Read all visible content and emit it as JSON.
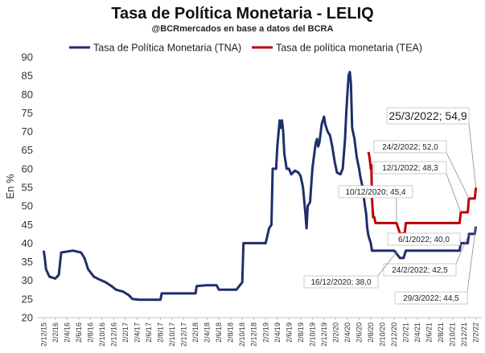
{
  "chart_data": {
    "type": "line",
    "title": "Tasa de Política Monetaria - LELIQ",
    "subtitle": "@BCRmercados en base a datos del BCRA",
    "ylabel": "En %",
    "ylim": [
      20,
      90
    ],
    "yticks": [
      "20",
      "25",
      "30",
      "35",
      "40",
      "45",
      "50",
      "55",
      "60",
      "65",
      "70",
      "75",
      "80",
      "85",
      "90"
    ],
    "xticks": [
      "2/12/15",
      "2/2/16",
      "2/4/16",
      "2/6/16",
      "2/8/16",
      "2/10/16",
      "2/12/16",
      "2/2/17",
      "2/4/17",
      "2/6/17",
      "2/8/17",
      "2/10/17",
      "2/12/17",
      "2/2/18",
      "2/4/18",
      "2/6/18",
      "2/8/18",
      "2/10/18",
      "2/12/18",
      "2/2/19",
      "2/4/19",
      "2/6/19",
      "2/8/19",
      "2/10/19",
      "2/12/19",
      "2/2/20",
      "2/4/20",
      "2/6/20",
      "2/8/20",
      "2/10/20",
      "2/12/20",
      "2/2/21",
      "2/4/21",
      "2/6/21",
      "2/8/21",
      "2/10/21",
      "2/12/21",
      "2/2/22"
    ],
    "legend_position": "top",
    "grid": false,
    "series": [
      {
        "name": "Tasa de Política Monetaria (TNA)",
        "color": "#1f2f6b",
        "points": [
          [
            0,
            38
          ],
          [
            0.1,
            36
          ],
          [
            0.2,
            33
          ],
          [
            0.5,
            31
          ],
          [
            1.0,
            30.5
          ],
          [
            1.3,
            31.5
          ],
          [
            1.5,
            37.5
          ],
          [
            2.5,
            38
          ],
          [
            3.2,
            37.5
          ],
          [
            3.5,
            36
          ],
          [
            3.8,
            33
          ],
          [
            4.3,
            31
          ],
          [
            4.8,
            30.2
          ],
          [
            5.3,
            29.5
          ],
          [
            5.8,
            28.5
          ],
          [
            6.2,
            27.5
          ],
          [
            6.8,
            27
          ],
          [
            7.3,
            26
          ],
          [
            7.6,
            25
          ],
          [
            8.2,
            24.8
          ],
          [
            10.0,
            24.8
          ],
          [
            10.1,
            26.5
          ],
          [
            13.0,
            26.5
          ],
          [
            13.1,
            28.5
          ],
          [
            14.0,
            28.7
          ],
          [
            14.8,
            28.7
          ],
          [
            15.0,
            27.5
          ],
          [
            16.5,
            27.5
          ],
          [
            17.0,
            29.5
          ],
          [
            17.1,
            40
          ],
          [
            18.5,
            40
          ],
          [
            19.0,
            40
          ],
          [
            19.3,
            44
          ],
          [
            19.5,
            45
          ],
          [
            19.6,
            60
          ],
          [
            19.9,
            60
          ],
          [
            20.0,
            66
          ],
          [
            20.2,
            73
          ],
          [
            20.3,
            71
          ],
          [
            20.4,
            73
          ],
          [
            20.5,
            70
          ],
          [
            20.6,
            64
          ],
          [
            20.8,
            60
          ],
          [
            21.0,
            60
          ],
          [
            21.2,
            58.5
          ],
          [
            21.5,
            59.5
          ],
          [
            21.8,
            59
          ],
          [
            22.0,
            58
          ],
          [
            22.2,
            55
          ],
          [
            22.4,
            48
          ],
          [
            22.5,
            44
          ],
          [
            22.6,
            50
          ],
          [
            22.8,
            51
          ],
          [
            23.0,
            60
          ],
          [
            23.2,
            65
          ],
          [
            23.3,
            67
          ],
          [
            23.4,
            68
          ],
          [
            23.5,
            66
          ],
          [
            23.6,
            67
          ],
          [
            23.8,
            72
          ],
          [
            24.0,
            74
          ],
          [
            24.1,
            72
          ],
          [
            24.3,
            70
          ],
          [
            24.5,
            69
          ],
          [
            24.7,
            66
          ],
          [
            24.9,
            62
          ],
          [
            25.1,
            59
          ],
          [
            25.4,
            58.5
          ],
          [
            25.6,
            60
          ],
          [
            25.8,
            68
          ],
          [
            25.9,
            75
          ],
          [
            26.0,
            80
          ],
          [
            26.1,
            85
          ],
          [
            26.2,
            86
          ],
          [
            26.3,
            83
          ],
          [
            26.4,
            71
          ],
          [
            26.6,
            68
          ],
          [
            26.8,
            63
          ],
          [
            27.0,
            60
          ],
          [
            27.1,
            58
          ],
          [
            27.3,
            55
          ],
          [
            27.5,
            50
          ],
          [
            27.6,
            48
          ],
          [
            27.7,
            44
          ],
          [
            27.8,
            42
          ],
          [
            28.0,
            40
          ],
          [
            28.1,
            38
          ],
          [
            29.0,
            38
          ],
          [
            30.0,
            38
          ],
          [
            30.5,
            36
          ],
          [
            30.8,
            36
          ],
          [
            31.0,
            38
          ],
          [
            33.0,
            38
          ],
          [
            35.0,
            38
          ],
          [
            35.6,
            38
          ],
          [
            35.7,
            40
          ],
          [
            36.3,
            40
          ],
          [
            36.4,
            42.5
          ],
          [
            36.9,
            42.5
          ],
          [
            37.0,
            44.5
          ]
        ]
      },
      {
        "name": "Tasa de política monetaria (TEA)",
        "color": "#c00000",
        "points": [
          [
            27.8,
            64.5
          ],
          [
            27.9,
            63
          ],
          [
            28.0,
            60
          ],
          [
            28.05,
            61
          ],
          [
            28.1,
            52
          ],
          [
            28.2,
            47
          ],
          [
            28.3,
            47
          ],
          [
            28.4,
            45.4
          ],
          [
            29.5,
            45.4
          ],
          [
            30.2,
            45.4
          ],
          [
            30.5,
            42.6
          ],
          [
            30.9,
            42.6
          ],
          [
            31.0,
            45.4
          ],
          [
            33.0,
            45.4
          ],
          [
            35.6,
            45.4
          ],
          [
            35.7,
            48.3
          ],
          [
            36.3,
            48.3
          ],
          [
            36.4,
            52
          ],
          [
            36.9,
            52
          ],
          [
            37.0,
            54.9
          ]
        ]
      }
    ],
    "annotations": [
      {
        "text": "25/3/2022; 54,9",
        "x": 37.0,
        "y": 54.9,
        "size": "big"
      },
      {
        "text": "24/2/2022; 52,0",
        "x": 36.4,
        "y": 52.0,
        "size": "small"
      },
      {
        "text": "12/1/2022; 48,3",
        "x": 35.7,
        "y": 48.3,
        "size": "small"
      },
      {
        "text": "10/12/2020; 45,4",
        "x": 30.2,
        "y": 45.4,
        "size": "small"
      },
      {
        "text": "6/1/2022; 40,0",
        "x": 35.7,
        "y": 40.0,
        "size": "small"
      },
      {
        "text": "24/2/2022; 42,5",
        "x": 36.4,
        "y": 42.5,
        "size": "small"
      },
      {
        "text": "16/12/2020; 38,0",
        "x": 30.3,
        "y": 38.0,
        "size": "small"
      },
      {
        "text": "29/3/2022; 44,5",
        "x": 37.0,
        "y": 44.5,
        "size": "small"
      }
    ]
  }
}
